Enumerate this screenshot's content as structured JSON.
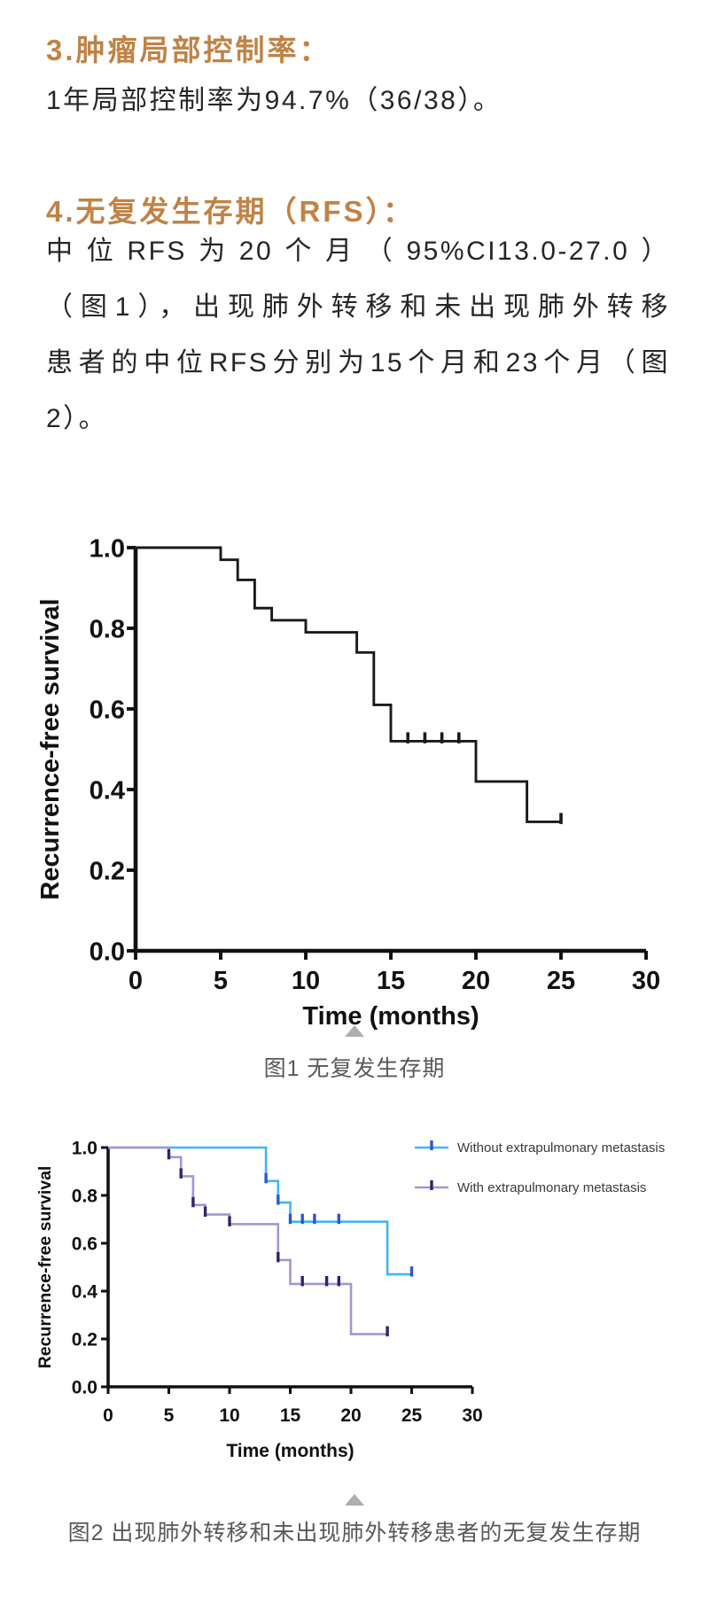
{
  "content": {
    "heading3": "3.肿瘤局部控制率：",
    "para3": "1年局部控制率为94.7%（36/38）。",
    "heading4": "4.无复发生存期（RFS）：",
    "para4_lines": [
      "中位RFS为20个月（95%CI13.0-27.0）",
      "（图1），出现肺外转移和未出现肺外转移",
      "患者的中位RFS分别为15个月和23个月（图",
      "2）。"
    ],
    "caption1": "图1 无复发生存期",
    "caption2": "图2 出现肺外转移和未出现肺外转移患者的无复发生存期"
  },
  "colors": {
    "bg": "#ffffff",
    "heading": "#c08346",
    "body": "#262626",
    "caption": "#595959",
    "triangle": "#aeaeae",
    "axis": "#111111",
    "legend_text": "#3a3a3a"
  },
  "chart_data": [
    {
      "type": "line",
      "subtype": "kaplan-meier-step",
      "title": "",
      "xlabel": "Time (months)",
      "ylabel": "Recurrence-free survival",
      "xlim": [
        0,
        30
      ],
      "ylim": [
        0.0,
        1.0
      ],
      "xticks": [
        0,
        5,
        10,
        15,
        20,
        25,
        30
      ],
      "xtick_labels": [
        "0",
        "5",
        "10",
        "15",
        "20",
        "25",
        "30"
      ],
      "yticks": [
        0.0,
        0.2,
        0.4,
        0.6,
        0.8,
        1.0
      ],
      "ytick_labels": [
        "0.0",
        "0.2",
        "0.4",
        "0.6",
        "0.8",
        "1.0"
      ],
      "grid": false,
      "legend": false,
      "series": [
        {
          "name": "",
          "color": "#1a1a1a",
          "censor_color": "#1a1a1a",
          "points": [
            [
              0,
              1.0
            ],
            [
              5,
              1.0
            ],
            [
              5,
              0.97
            ],
            [
              6,
              0.97
            ],
            [
              6,
              0.92
            ],
            [
              7,
              0.92
            ],
            [
              7,
              0.85
            ],
            [
              8,
              0.85
            ],
            [
              8,
              0.82
            ],
            [
              10,
              0.82
            ],
            [
              10,
              0.79
            ],
            [
              13,
              0.79
            ],
            [
              13,
              0.74
            ],
            [
              14,
              0.74
            ],
            [
              14,
              0.61
            ],
            [
              15,
              0.61
            ],
            [
              15,
              0.52
            ],
            [
              20,
              0.52
            ],
            [
              20,
              0.42
            ],
            [
              23,
              0.42
            ],
            [
              23,
              0.32
            ],
            [
              25,
              0.32
            ]
          ],
          "censors": [
            [
              16,
              0.52
            ],
            [
              17,
              0.52
            ],
            [
              18,
              0.52
            ],
            [
              19,
              0.52
            ],
            [
              25,
              0.32
            ]
          ]
        }
      ]
    },
    {
      "type": "line",
      "subtype": "kaplan-meier-step",
      "title": "",
      "xlabel": "Time (months)",
      "ylabel": "Recurrence-free survival",
      "xlim": [
        0,
        30
      ],
      "ylim": [
        0.0,
        1.0
      ],
      "xticks": [
        0,
        5,
        10,
        15,
        20,
        25,
        30
      ],
      "xtick_labels": [
        "0",
        "5",
        "10",
        "15",
        "20",
        "25",
        "30"
      ],
      "yticks": [
        0.0,
        0.2,
        0.4,
        0.6,
        0.8,
        1.0
      ],
      "ytick_labels": [
        "0.0",
        "0.2",
        "0.4",
        "0.6",
        "0.8",
        "1.0"
      ],
      "grid": false,
      "legend": true,
      "legend_position": "top-right",
      "series": [
        {
          "name": "Without extrapulmonary metastasis",
          "color": "#3cb8f3",
          "censor_color": "#2f55d4",
          "points": [
            [
              0,
              1.0
            ],
            [
              13,
              1.0
            ],
            [
              13,
              0.86
            ],
            [
              14,
              0.86
            ],
            [
              14,
              0.77
            ],
            [
              15,
              0.77
            ],
            [
              15,
              0.69
            ],
            [
              23,
              0.69
            ],
            [
              23,
              0.47
            ],
            [
              25,
              0.47
            ]
          ],
          "censors": [
            [
              13,
              0.86
            ],
            [
              14,
              0.77
            ],
            [
              15,
              0.69
            ],
            [
              16,
              0.69
            ],
            [
              17,
              0.69
            ],
            [
              19,
              0.69
            ],
            [
              25,
              0.47
            ]
          ]
        },
        {
          "name": "With extrapulmonary metastasis",
          "color": "#a795d2",
          "censor_color": "#2f2570",
          "points": [
            [
              0,
              1.0
            ],
            [
              5,
              1.0
            ],
            [
              5,
              0.96
            ],
            [
              6,
              0.96
            ],
            [
              6,
              0.88
            ],
            [
              7,
              0.88
            ],
            [
              7,
              0.76
            ],
            [
              8,
              0.76
            ],
            [
              8,
              0.72
            ],
            [
              10,
              0.72
            ],
            [
              10,
              0.68
            ],
            [
              14,
              0.68
            ],
            [
              14,
              0.53
            ],
            [
              15,
              0.53
            ],
            [
              15,
              0.43
            ],
            [
              20,
              0.43
            ],
            [
              20,
              0.22
            ],
            [
              23,
              0.22
            ]
          ],
          "censors": [
            [
              5,
              0.96
            ],
            [
              6,
              0.88
            ],
            [
              7,
              0.76
            ],
            [
              8,
              0.72
            ],
            [
              10,
              0.68
            ],
            [
              14,
              0.53
            ],
            [
              16,
              0.43
            ],
            [
              18,
              0.43
            ],
            [
              19,
              0.43
            ],
            [
              23,
              0.22
            ]
          ]
        }
      ]
    }
  ]
}
